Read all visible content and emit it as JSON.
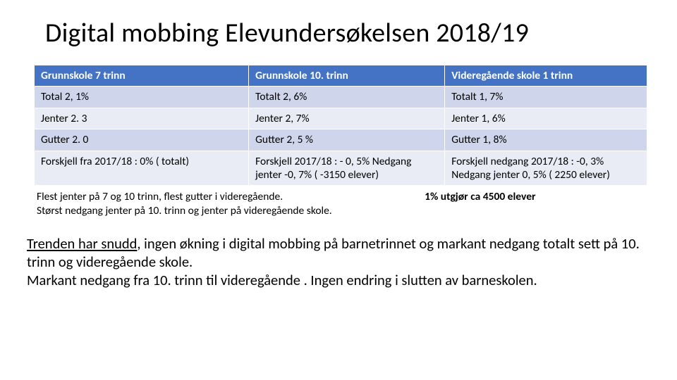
{
  "title": "Digital mobbing Elevundersøkelsen 2018/19",
  "table": {
    "header_bg": "#4472c4",
    "header_color": "#ffffff",
    "band_a_bg": "#cfd5ea",
    "band_b_bg": "#e9ecf5",
    "columns": [
      "Grunnskole 7 trinn",
      "Grunnskole 10. trinn",
      "Videregående skole 1 trinn"
    ],
    "rows": [
      [
        "Total 2, 1%",
        "Totalt 2, 6%",
        "Totalt 1, 7%"
      ],
      [
        "Jenter 2. 3",
        "Jenter 2, 7%",
        "Jenter 1, 6%"
      ],
      [
        "Gutter 2. 0",
        "Gutter 2, 5 %",
        "Gutter 1, 8%"
      ],
      [
        "Forskjell fra 2017/18 : 0% ( totalt)",
        "Forskjell 2017/18 : - 0, 5% Nedgang jenter -0, 7% ( -3150 elever)",
        "Forskjell nedgang 2017/18 : -0, 3% Nedgang jenter 0, 5% ( 2250 elever)"
      ]
    ]
  },
  "notes_left_line1": "Flest jenter på 7 og 10 trinn, flest gutter i videregående.",
  "notes_left_line2": "Størst nedgang jenter på 10. trinn og jenter på videregående skole.",
  "notes_right": "1% utgjør ca 4500 elever",
  "body_underline": "Trenden har snudd",
  "body_rest": ", ingen økning i digital mobbing på barnetrinnet og markant nedgang totalt sett på 10. trinn og videregående skole.\nMarkant nedgang fra 10. trinn til videregående . Ingen endring i slutten av barneskolen."
}
